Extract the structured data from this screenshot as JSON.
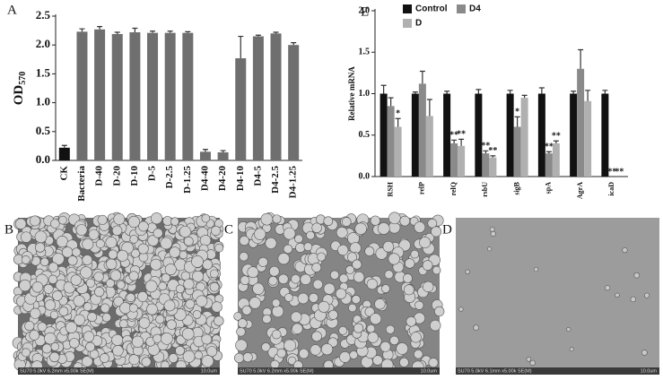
{
  "chart_data": [
    {
      "type": "bar",
      "panel": "A",
      "y_label": "OD",
      "y_label_sub": "570",
      "categories": [
        "CK",
        "Bacteria",
        "D-40",
        "D-20",
        "D-10",
        "D-5",
        "D-2.5",
        "D-1.25",
        "D4-40",
        "D4-20",
        "D4-10",
        "D4-5",
        "D4-2.5",
        "D4-1.25"
      ],
      "values": [
        0.22,
        2.23,
        2.27,
        2.19,
        2.22,
        2.21,
        2.21,
        2.21,
        0.15,
        0.14,
        1.77,
        2.15,
        2.2,
        2.0
      ],
      "errors": [
        0.04,
        0.05,
        0.05,
        0.03,
        0.07,
        0.03,
        0.03,
        0.02,
        0.04,
        0.03,
        0.38,
        0.02,
        0.02,
        0.04
      ],
      "colors": [
        "#111111",
        "#6f6f6f",
        "#6f6f6f",
        "#6f6f6f",
        "#6f6f6f",
        "#6f6f6f",
        "#6f6f6f",
        "#6f6f6f",
        "#6f6f6f",
        "#6f6f6f",
        "#6f6f6f",
        "#6f6f6f",
        "#6f6f6f",
        "#6f6f6f"
      ],
      "ylim": [
        0,
        2.5
      ],
      "yticks": [
        {
          "value": 0,
          "label": "0.0"
        },
        0.5,
        {
          "value": 1,
          "label": "1.0"
        },
        1.5,
        {
          "value": 2,
          "label": "2.0"
        },
        2.5
      ]
    },
    {
      "type": "bar",
      "panel": "E",
      "y_label": "Relative mRNA",
      "categories": [
        "RSH",
        "relP",
        "relQ",
        "rsbU",
        "sigB",
        "spA",
        "AgrA",
        "icaD"
      ],
      "series": [
        {
          "name": "Control",
          "color": "#111111",
          "values": [
            1.0,
            1.0,
            1.0,
            1.0,
            1.0,
            1.0,
            1.0,
            1.0
          ],
          "errors": [
            0.1,
            0.02,
            0.03,
            0.05,
            0.04,
            0.07,
            0.03,
            0.04
          ],
          "significance": [
            null,
            null,
            null,
            null,
            null,
            null,
            null,
            null
          ]
        },
        {
          "name": "D4",
          "color": "#8a8a8a",
          "values": [
            0.85,
            1.12,
            0.4,
            0.28,
            0.6,
            0.28,
            1.3,
            0
          ],
          "errors": [
            0.1,
            0.15,
            0.04,
            0.03,
            0.12,
            0.02,
            0.23,
            0
          ],
          "significance": [
            null,
            null,
            "**",
            "**",
            "*",
            "**",
            null,
            "**"
          ]
        },
        {
          "name": "D",
          "color": "#b0b0b0",
          "values": [
            0.6,
            0.73,
            0.37,
            0.23,
            0.95,
            0.4,
            0.91,
            0
          ],
          "errors": [
            0.1,
            0.2,
            0.08,
            0.02,
            0.03,
            0.03,
            0.13,
            0
          ],
          "significance": [
            "*",
            null,
            "**",
            "**",
            null,
            "**",
            null,
            "**"
          ]
        }
      ],
      "ylim": [
        0,
        2.0
      ],
      "yticks": [
        {
          "value": 0,
          "label": "0.0"
        },
        0.5,
        {
          "value": 1,
          "label": "1.0"
        },
        1.5,
        {
          "value": 2,
          "label": "2.0"
        }
      ]
    }
  ],
  "images": [
    {
      "panel": "B",
      "caption": "SU70 5.0kV 6.2mm x5.00k SE(M)",
      "scale": "10.0um"
    },
    {
      "panel": "C",
      "caption": "SU70 5.0kV 6.2mm x5.00k SE(M)",
      "scale": "10.0um"
    },
    {
      "panel": "D",
      "caption": "SU70 5.0kV 6.1mm x5.00k SE(M)",
      "scale": "10.0um"
    }
  ]
}
